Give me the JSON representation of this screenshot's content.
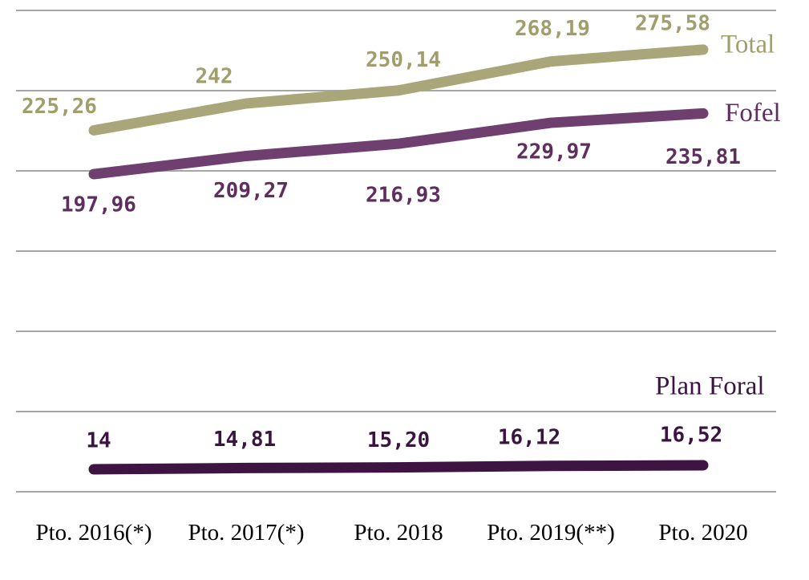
{
  "chart_data": {
    "type": "line",
    "categories": [
      "Pto. 2016(*)",
      "Pto. 2017(*)",
      "Pto. 2018",
      "Pto. 2019(**)",
      "Pto. 2020"
    ],
    "series": [
      {
        "name": "Total",
        "color": "#a9a77a",
        "label_color": "#a09e6c",
        "values": [
          225.26,
          242,
          250.14,
          268.19,
          275.58
        ],
        "value_labels": [
          "225,26",
          "242",
          "250,14",
          "268,19",
          "275,58"
        ]
      },
      {
        "name": "Fofel",
        "color": "#6f3f70",
        "label_color": "#5e2f5e",
        "values": [
          197.96,
          209.27,
          216.93,
          229.97,
          235.81
        ],
        "value_labels": [
          "197,96",
          "209,27",
          "216,93",
          "229,97",
          "235,81"
        ]
      },
      {
        "name": "Plan Foral",
        "color": "#3e1442",
        "label_color": "#3a1540",
        "values": [
          14,
          14.81,
          15.2,
          16.12,
          16.52
        ],
        "value_labels": [
          "14",
          "14,81",
          "15,20",
          "16,12",
          "16,52"
        ]
      }
    ],
    "ylim": [
      0,
      300
    ],
    "yticks": [
      0,
      50,
      100,
      150,
      200,
      250,
      300
    ],
    "grid": true
  }
}
